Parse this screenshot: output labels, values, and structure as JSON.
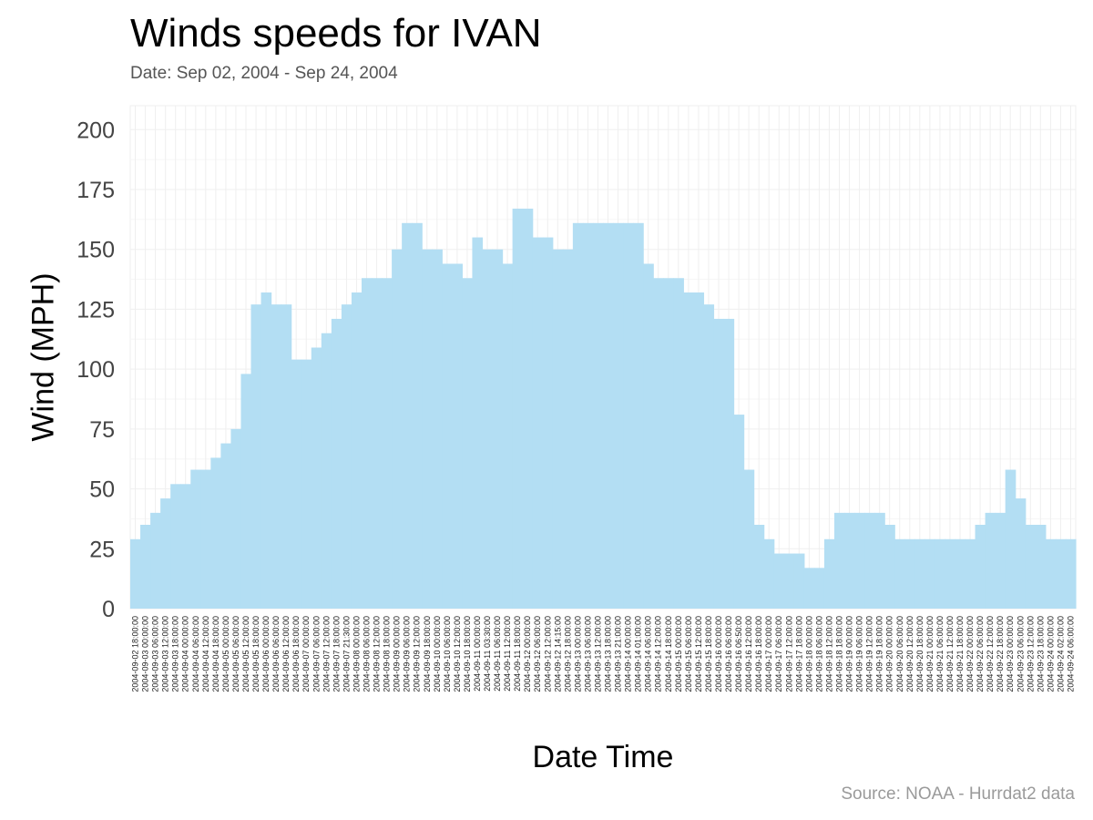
{
  "chart_data": {
    "type": "area",
    "title": "Winds speeds for IVAN",
    "subtitle": "Date:  Sep 02, 2004 - Sep 24, 2004",
    "xlabel": "Date Time",
    "ylabel": "Wind (MPH)",
    "caption": "Source: NOAA - Hurrdat2 data",
    "ylim": [
      0,
      210
    ],
    "yticks": [
      0,
      25,
      50,
      75,
      100,
      125,
      150,
      175,
      200
    ],
    "grid": true,
    "legend": "none",
    "colors": {
      "fill": "#b3def3",
      "grid": "#efefef"
    },
    "x": [
      "2004-09-02 18:00:00",
      "2004-09-03 00:00:00",
      "2004-09-03 06:00:00",
      "2004-09-03 12:00:00",
      "2004-09-03 18:00:00",
      "2004-09-04 00:00:00",
      "2004-09-04 06:00:00",
      "2004-09-04 12:00:00",
      "2004-09-04 18:00:00",
      "2004-09-05 00:00:00",
      "2004-09-05 06:00:00",
      "2004-09-05 12:00:00",
      "2004-09-05 18:00:00",
      "2004-09-06 00:00:00",
      "2004-09-06 06:00:00",
      "2004-09-06 12:00:00",
      "2004-09-06 18:00:00",
      "2004-09-07 00:00:00",
      "2004-09-07 06:00:00",
      "2004-09-07 12:00:00",
      "2004-09-07 18:00:00",
      "2004-09-07 21:30:00",
      "2004-09-08 00:00:00",
      "2004-09-08 06:00:00",
      "2004-09-08 12:00:00",
      "2004-09-08 18:00:00",
      "2004-09-09 00:00:00",
      "2004-09-09 06:00:00",
      "2004-09-09 12:00:00",
      "2004-09-09 18:00:00",
      "2004-09-10 00:00:00",
      "2004-09-10 06:00:00",
      "2004-09-10 12:00:00",
      "2004-09-10 18:00:00",
      "2004-09-11 00:00:00",
      "2004-09-11 03:30:00",
      "2004-09-11 06:00:00",
      "2004-09-11 12:00:00",
      "2004-09-11 18:00:00",
      "2004-09-12 00:00:00",
      "2004-09-12 06:00:00",
      "2004-09-12 12:00:00",
      "2004-09-12 14:15:00",
      "2004-09-12 18:00:00",
      "2004-09-13 00:00:00",
      "2004-09-13 06:00:00",
      "2004-09-13 12:00:00",
      "2004-09-13 18:00:00",
      "2004-09-13 21:00:00",
      "2004-09-14 00:00:00",
      "2004-09-14 01:00:00",
      "2004-09-14 06:00:00",
      "2004-09-14 12:00:00",
      "2004-09-14 18:00:00",
      "2004-09-15 00:00:00",
      "2004-09-15 06:00:00",
      "2004-09-15 12:00:00",
      "2004-09-15 18:00:00",
      "2004-09-16 00:00:00",
      "2004-09-16 06:00:00",
      "2004-09-16 06:50:00",
      "2004-09-16 12:00:00",
      "2004-09-16 18:00:00",
      "2004-09-17 00:00:00",
      "2004-09-17 06:00:00",
      "2004-09-17 12:00:00",
      "2004-09-17 18:00:00",
      "2004-09-18 00:00:00",
      "2004-09-18 06:00:00",
      "2004-09-18 12:00:00",
      "2004-09-18 18:00:00",
      "2004-09-19 00:00:00",
      "2004-09-19 06:00:00",
      "2004-09-19 12:00:00",
      "2004-09-19 18:00:00",
      "2004-09-20 00:00:00",
      "2004-09-20 06:00:00",
      "2004-09-20 12:00:00",
      "2004-09-20 18:00:00",
      "2004-09-21 00:00:00",
      "2004-09-21 06:00:00",
      "2004-09-21 12:00:00",
      "2004-09-21 18:00:00",
      "2004-09-22 00:00:00",
      "2004-09-22 06:00:00",
      "2004-09-22 12:00:00",
      "2004-09-22 18:00:00",
      "2004-09-23 00:00:00",
      "2004-09-23 06:00:00",
      "2004-09-23 12:00:00",
      "2004-09-23 18:00:00",
      "2004-09-24 00:00:00",
      "2004-09-24 02:00:00",
      "2004-09-24 06:00:00"
    ],
    "y": [
      29,
      35,
      40,
      46,
      52,
      52,
      58,
      58,
      63,
      69,
      75,
      98,
      127,
      132,
      127,
      127,
      104,
      104,
      109,
      115,
      121,
      127,
      132,
      138,
      138,
      138,
      150,
      161,
      161,
      150,
      150,
      144,
      144,
      138,
      155,
      150,
      150,
      144,
      167,
      167,
      155,
      155,
      150,
      150,
      161,
      161,
      161,
      161,
      161,
      161,
      161,
      144,
      138,
      138,
      138,
      132,
      132,
      127,
      121,
      121,
      81,
      58,
      35,
      29,
      23,
      23,
      23,
      17,
      17,
      29,
      40,
      40,
      40,
      40,
      40,
      35,
      29,
      29,
      29,
      29,
      29,
      29,
      29,
      29,
      35,
      40,
      40,
      58,
      46,
      35,
      35,
      29,
      29,
      29
    ]
  }
}
